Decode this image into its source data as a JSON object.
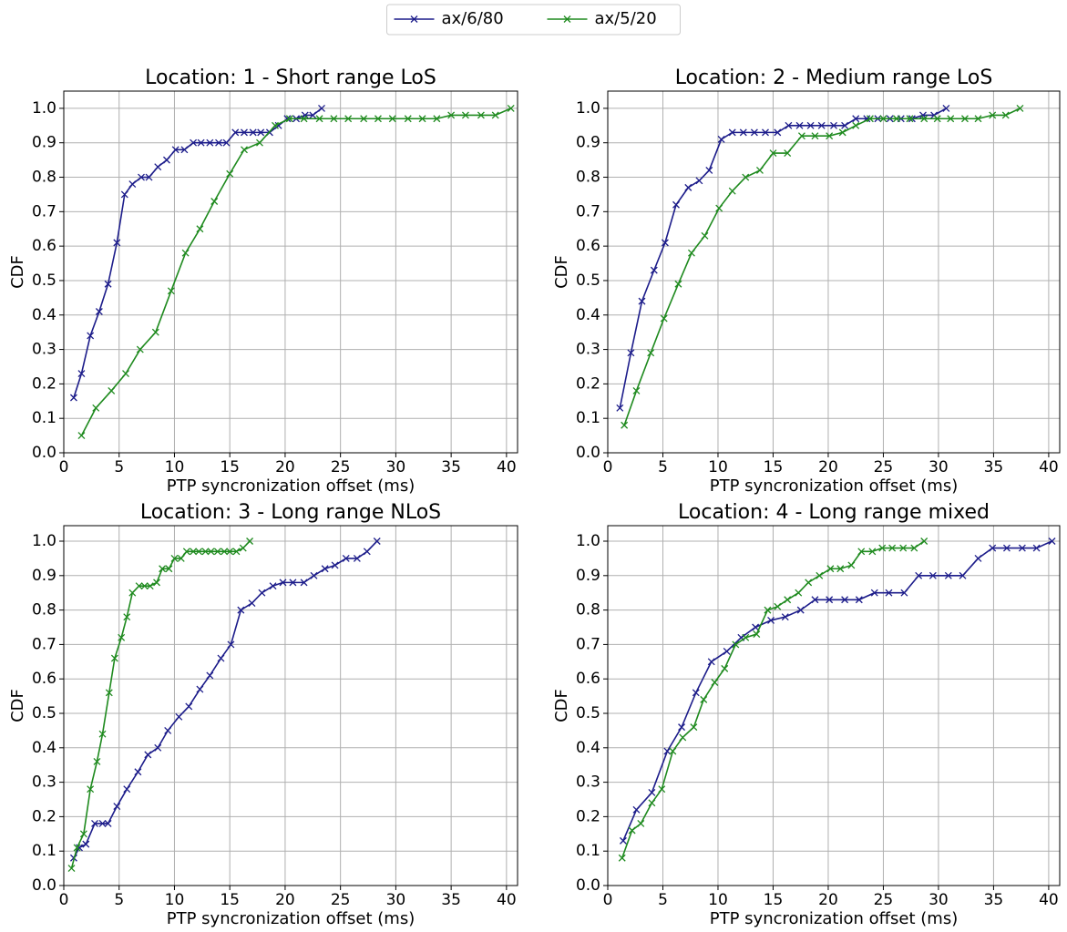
{
  "chart_data": [
    {
      "type": "line",
      "title": "Location: 1 - Short range LoS",
      "xlabel": "PTP syncronization offset (ms)",
      "ylabel": "CDF",
      "xlim": [
        0,
        41
      ],
      "ylim": [
        0,
        1.05
      ],
      "xticks": [
        0,
        5,
        10,
        15,
        20,
        25,
        30,
        35,
        40
      ],
      "yticks": [
        {
          "value": 0,
          "label": "0.0"
        },
        0.1,
        0.2,
        0.3,
        0.4,
        0.5,
        0.6,
        0.7,
        0.8,
        0.9,
        {
          "value": 1,
          "label": "1.0"
        }
      ],
      "grid": true,
      "legend": "upper center",
      "series": [
        {
          "name": "ax/6/80",
          "color": "#1c1c8a",
          "x": [
            0.9,
            1.6,
            2.4,
            3.2,
            4.0,
            4.8,
            5.5,
            6.2,
            7.0,
            7.7,
            8.5,
            9.3,
            10.1,
            10.9,
            11.7,
            12.4,
            13.2,
            14.0,
            14.7,
            15.5,
            16.3,
            17.1,
            17.8,
            18.6,
            19.4,
            20.2,
            21.0,
            21.8,
            22.5,
            23.3
          ],
          "values": [
            0.16,
            0.23,
            0.34,
            0.41,
            0.49,
            0.61,
            0.75,
            0.78,
            0.8,
            0.8,
            0.83,
            0.85,
            0.88,
            0.88,
            0.9,
            0.9,
            0.9,
            0.9,
            0.9,
            0.93,
            0.93,
            0.93,
            0.93,
            0.93,
            0.95,
            0.97,
            0.97,
            0.98,
            0.98,
            1.0
          ]
        },
        {
          "name": "ax/5/20",
          "color": "#1e8a1e",
          "x": [
            1.6,
            2.9,
            4.3,
            5.6,
            6.9,
            8.3,
            9.7,
            11.0,
            12.3,
            13.6,
            15.0,
            16.3,
            17.7,
            19.1,
            20.4,
            21.7,
            23.1,
            24.4,
            25.7,
            27.1,
            28.4,
            29.7,
            31.1,
            32.4,
            33.7,
            35.0,
            36.3,
            37.7,
            39.0,
            40.4
          ],
          "values": [
            0.05,
            0.13,
            0.18,
            0.23,
            0.3,
            0.35,
            0.47,
            0.58,
            0.65,
            0.73,
            0.81,
            0.88,
            0.9,
            0.95,
            0.97,
            0.97,
            0.97,
            0.97,
            0.97,
            0.97,
            0.97,
            0.97,
            0.97,
            0.97,
            0.97,
            0.98,
            0.98,
            0.98,
            0.98,
            1.0
          ]
        }
      ]
    },
    {
      "type": "line",
      "title": "Location: 2 - Medium range LoS",
      "xlabel": "PTP syncronization offset (ms)",
      "ylabel": "CDF",
      "xlim": [
        0,
        41
      ],
      "ylim": [
        0,
        1.05
      ],
      "xticks": [
        0,
        5,
        10,
        15,
        20,
        25,
        30,
        35,
        40
      ],
      "yticks": [
        {
          "value": 0,
          "label": "0.0"
        },
        0.1,
        0.2,
        0.3,
        0.4,
        0.5,
        0.6,
        0.7,
        0.8,
        0.9,
        {
          "value": 1,
          "label": "1.0"
        }
      ],
      "grid": true,
      "series": [
        {
          "name": "ax/6/80",
          "color": "#1c1c8a",
          "x": [
            1.1,
            2.1,
            3.1,
            4.2,
            5.2,
            6.2,
            7.3,
            8.3,
            9.2,
            10.3,
            11.3,
            12.3,
            13.3,
            14.3,
            15.4,
            16.4,
            17.4,
            18.4,
            19.4,
            20.5,
            21.5,
            22.5,
            23.5,
            24.5,
            25.6,
            26.6,
            27.6,
            28.6,
            29.6,
            30.7
          ],
          "values": [
            0.13,
            0.29,
            0.44,
            0.53,
            0.61,
            0.72,
            0.77,
            0.79,
            0.82,
            0.91,
            0.93,
            0.93,
            0.93,
            0.93,
            0.93,
            0.95,
            0.95,
            0.95,
            0.95,
            0.95,
            0.95,
            0.97,
            0.97,
            0.97,
            0.97,
            0.97,
            0.97,
            0.98,
            0.98,
            1.0
          ]
        },
        {
          "name": "ax/5/20",
          "color": "#1e8a1e",
          "x": [
            1.5,
            2.6,
            3.9,
            5.1,
            6.4,
            7.6,
            8.8,
            10.1,
            11.3,
            12.5,
            13.8,
            15.0,
            16.3,
            17.6,
            18.8,
            20.1,
            21.3,
            22.5,
            23.8,
            25.0,
            26.2,
            27.4,
            28.7,
            29.9,
            31.1,
            32.4,
            33.6,
            34.9,
            36.1,
            37.4
          ],
          "values": [
            0.08,
            0.18,
            0.29,
            0.39,
            0.49,
            0.58,
            0.63,
            0.71,
            0.76,
            0.8,
            0.82,
            0.87,
            0.87,
            0.92,
            0.92,
            0.92,
            0.93,
            0.95,
            0.97,
            0.97,
            0.97,
            0.97,
            0.97,
            0.97,
            0.97,
            0.97,
            0.97,
            0.98,
            0.98,
            1.0
          ]
        }
      ]
    },
    {
      "type": "line",
      "title": "Location: 3 - Long range NLoS",
      "xlabel": "PTP syncronization offset (ms)",
      "ylabel": "CDF",
      "xlim": [
        0,
        41
      ],
      "ylim": [
        0,
        1.045
      ],
      "xticks": [
        0,
        5,
        10,
        15,
        20,
        25,
        30,
        35,
        40
      ],
      "yticks": [
        {
          "value": 0,
          "label": "0.0"
        },
        0.1,
        0.2,
        0.3,
        0.4,
        0.5,
        0.6,
        0.7,
        0.8,
        0.9,
        {
          "value": 1,
          "label": "1.0"
        }
      ],
      "grid": true,
      "series": [
        {
          "name": "ax/6/80",
          "color": "#1c1c8a",
          "x": [
            0.9,
            1.4,
            2.0,
            2.8,
            3.5,
            4.0,
            4.8,
            5.7,
            6.7,
            7.6,
            8.5,
            9.4,
            10.4,
            11.3,
            12.3,
            13.2,
            14.2,
            15.1,
            16.0,
            17.0,
            17.9,
            18.9,
            19.8,
            20.7,
            21.7,
            22.6,
            23.6,
            24.5,
            25.5,
            26.5,
            27.4,
            28.3
          ],
          "values": [
            0.08,
            0.11,
            0.12,
            0.18,
            0.18,
            0.18,
            0.23,
            0.28,
            0.33,
            0.38,
            0.4,
            0.45,
            0.49,
            0.52,
            0.57,
            0.61,
            0.66,
            0.7,
            0.8,
            0.82,
            0.85,
            0.87,
            0.88,
            0.88,
            0.88,
            0.9,
            0.92,
            0.93,
            0.95,
            0.95,
            0.97,
            1.0
          ]
        },
        {
          "name": "ax/5/20",
          "color": "#1e8a1e",
          "x": [
            0.7,
            1.2,
            1.8,
            2.4,
            3.0,
            3.5,
            4.1,
            4.6,
            5.2,
            5.7,
            6.2,
            6.8,
            7.3,
            7.8,
            8.4,
            8.9,
            9.5,
            10.0,
            10.6,
            11.1,
            11.7,
            12.2,
            12.8,
            13.3,
            13.9,
            14.5,
            15.0,
            15.6,
            16.2,
            16.8
          ],
          "values": [
            0.05,
            0.11,
            0.15,
            0.28,
            0.36,
            0.44,
            0.56,
            0.66,
            0.72,
            0.78,
            0.85,
            0.87,
            0.87,
            0.87,
            0.88,
            0.92,
            0.92,
            0.95,
            0.95,
            0.97,
            0.97,
            0.97,
            0.97,
            0.97,
            0.97,
            0.97,
            0.97,
            0.97,
            0.98,
            1.0
          ]
        }
      ]
    },
    {
      "type": "line",
      "title": "Location: 4 - Long range mixed",
      "xlabel": "PTP syncronization offset (ms)",
      "ylabel": "CDF",
      "xlim": [
        0,
        41
      ],
      "ylim": [
        0,
        1.045
      ],
      "xticks": [
        0,
        5,
        10,
        15,
        20,
        25,
        30,
        35,
        40
      ],
      "yticks": [
        {
          "value": 0,
          "label": "0.0"
        },
        0.1,
        0.2,
        0.3,
        0.4,
        0.5,
        0.6,
        0.7,
        0.8,
        0.9,
        {
          "value": 1,
          "label": "1.0"
        }
      ],
      "grid": true,
      "series": [
        {
          "name": "ax/6/80",
          "color": "#1c1c8a",
          "x": [
            1.4,
            2.6,
            4.0,
            5.4,
            6.7,
            8.0,
            9.4,
            10.8,
            12.1,
            13.4,
            14.8,
            16.1,
            17.5,
            18.8,
            20.1,
            21.5,
            22.8,
            24.2,
            25.5,
            26.9,
            28.2,
            29.5,
            30.9,
            32.2,
            33.6,
            34.9,
            36.2,
            37.6,
            38.9,
            40.3
          ],
          "values": [
            0.13,
            0.22,
            0.27,
            0.39,
            0.46,
            0.56,
            0.65,
            0.68,
            0.72,
            0.75,
            0.77,
            0.78,
            0.8,
            0.83,
            0.83,
            0.83,
            0.83,
            0.85,
            0.85,
            0.85,
            0.9,
            0.9,
            0.9,
            0.9,
            0.95,
            0.98,
            0.98,
            0.98,
            0.98,
            1.0
          ]
        },
        {
          "name": "ax/5/20",
          "color": "#1e8a1e",
          "x": [
            1.3,
            2.2,
            3.0,
            4.0,
            4.9,
            5.9,
            6.8,
            7.8,
            8.7,
            9.7,
            10.6,
            11.6,
            12.5,
            13.5,
            14.5,
            15.4,
            16.3,
            17.3,
            18.2,
            19.2,
            20.2,
            21.1,
            22.1,
            23.0,
            24.0,
            24.9,
            25.8,
            26.8,
            27.8,
            28.7
          ],
          "values": [
            0.08,
            0.16,
            0.18,
            0.24,
            0.28,
            0.39,
            0.43,
            0.46,
            0.54,
            0.59,
            0.63,
            0.7,
            0.72,
            0.73,
            0.8,
            0.81,
            0.83,
            0.85,
            0.88,
            0.9,
            0.92,
            0.92,
            0.93,
            0.97,
            0.97,
            0.98,
            0.98,
            0.98,
            0.98,
            1.0
          ]
        }
      ]
    }
  ]
}
